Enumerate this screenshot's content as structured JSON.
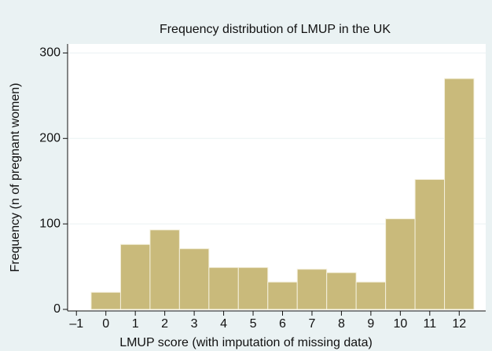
{
  "chart_data": {
    "type": "histogram",
    "title": "Frequency distribution of LMUP in the UK",
    "xlabel": "LMUP score (with imputation of missing data)",
    "ylabel": "Frequency (n of pregnant women)",
    "bins": [
      -0.5,
      0.5,
      1.5,
      2.5,
      3.5,
      4.5,
      5.5,
      6.5,
      7.5,
      8.5,
      9.5,
      10.5,
      11.5,
      12.5
    ],
    "values": [
      20,
      76,
      93,
      71,
      49,
      49,
      32,
      47,
      43,
      32,
      106,
      152,
      270
    ],
    "color": "#c9ba7b",
    "xlim": [
      -1.3,
      12.9
    ],
    "xticks": [
      {
        "value": -1,
        "label": "–1"
      },
      0,
      1,
      2,
      3,
      4,
      5,
      6,
      7,
      8,
      9,
      10,
      11,
      12
    ],
    "ylim": [
      0,
      305
    ],
    "yticks": [
      0,
      100,
      200,
      300
    ],
    "grid": true
  }
}
